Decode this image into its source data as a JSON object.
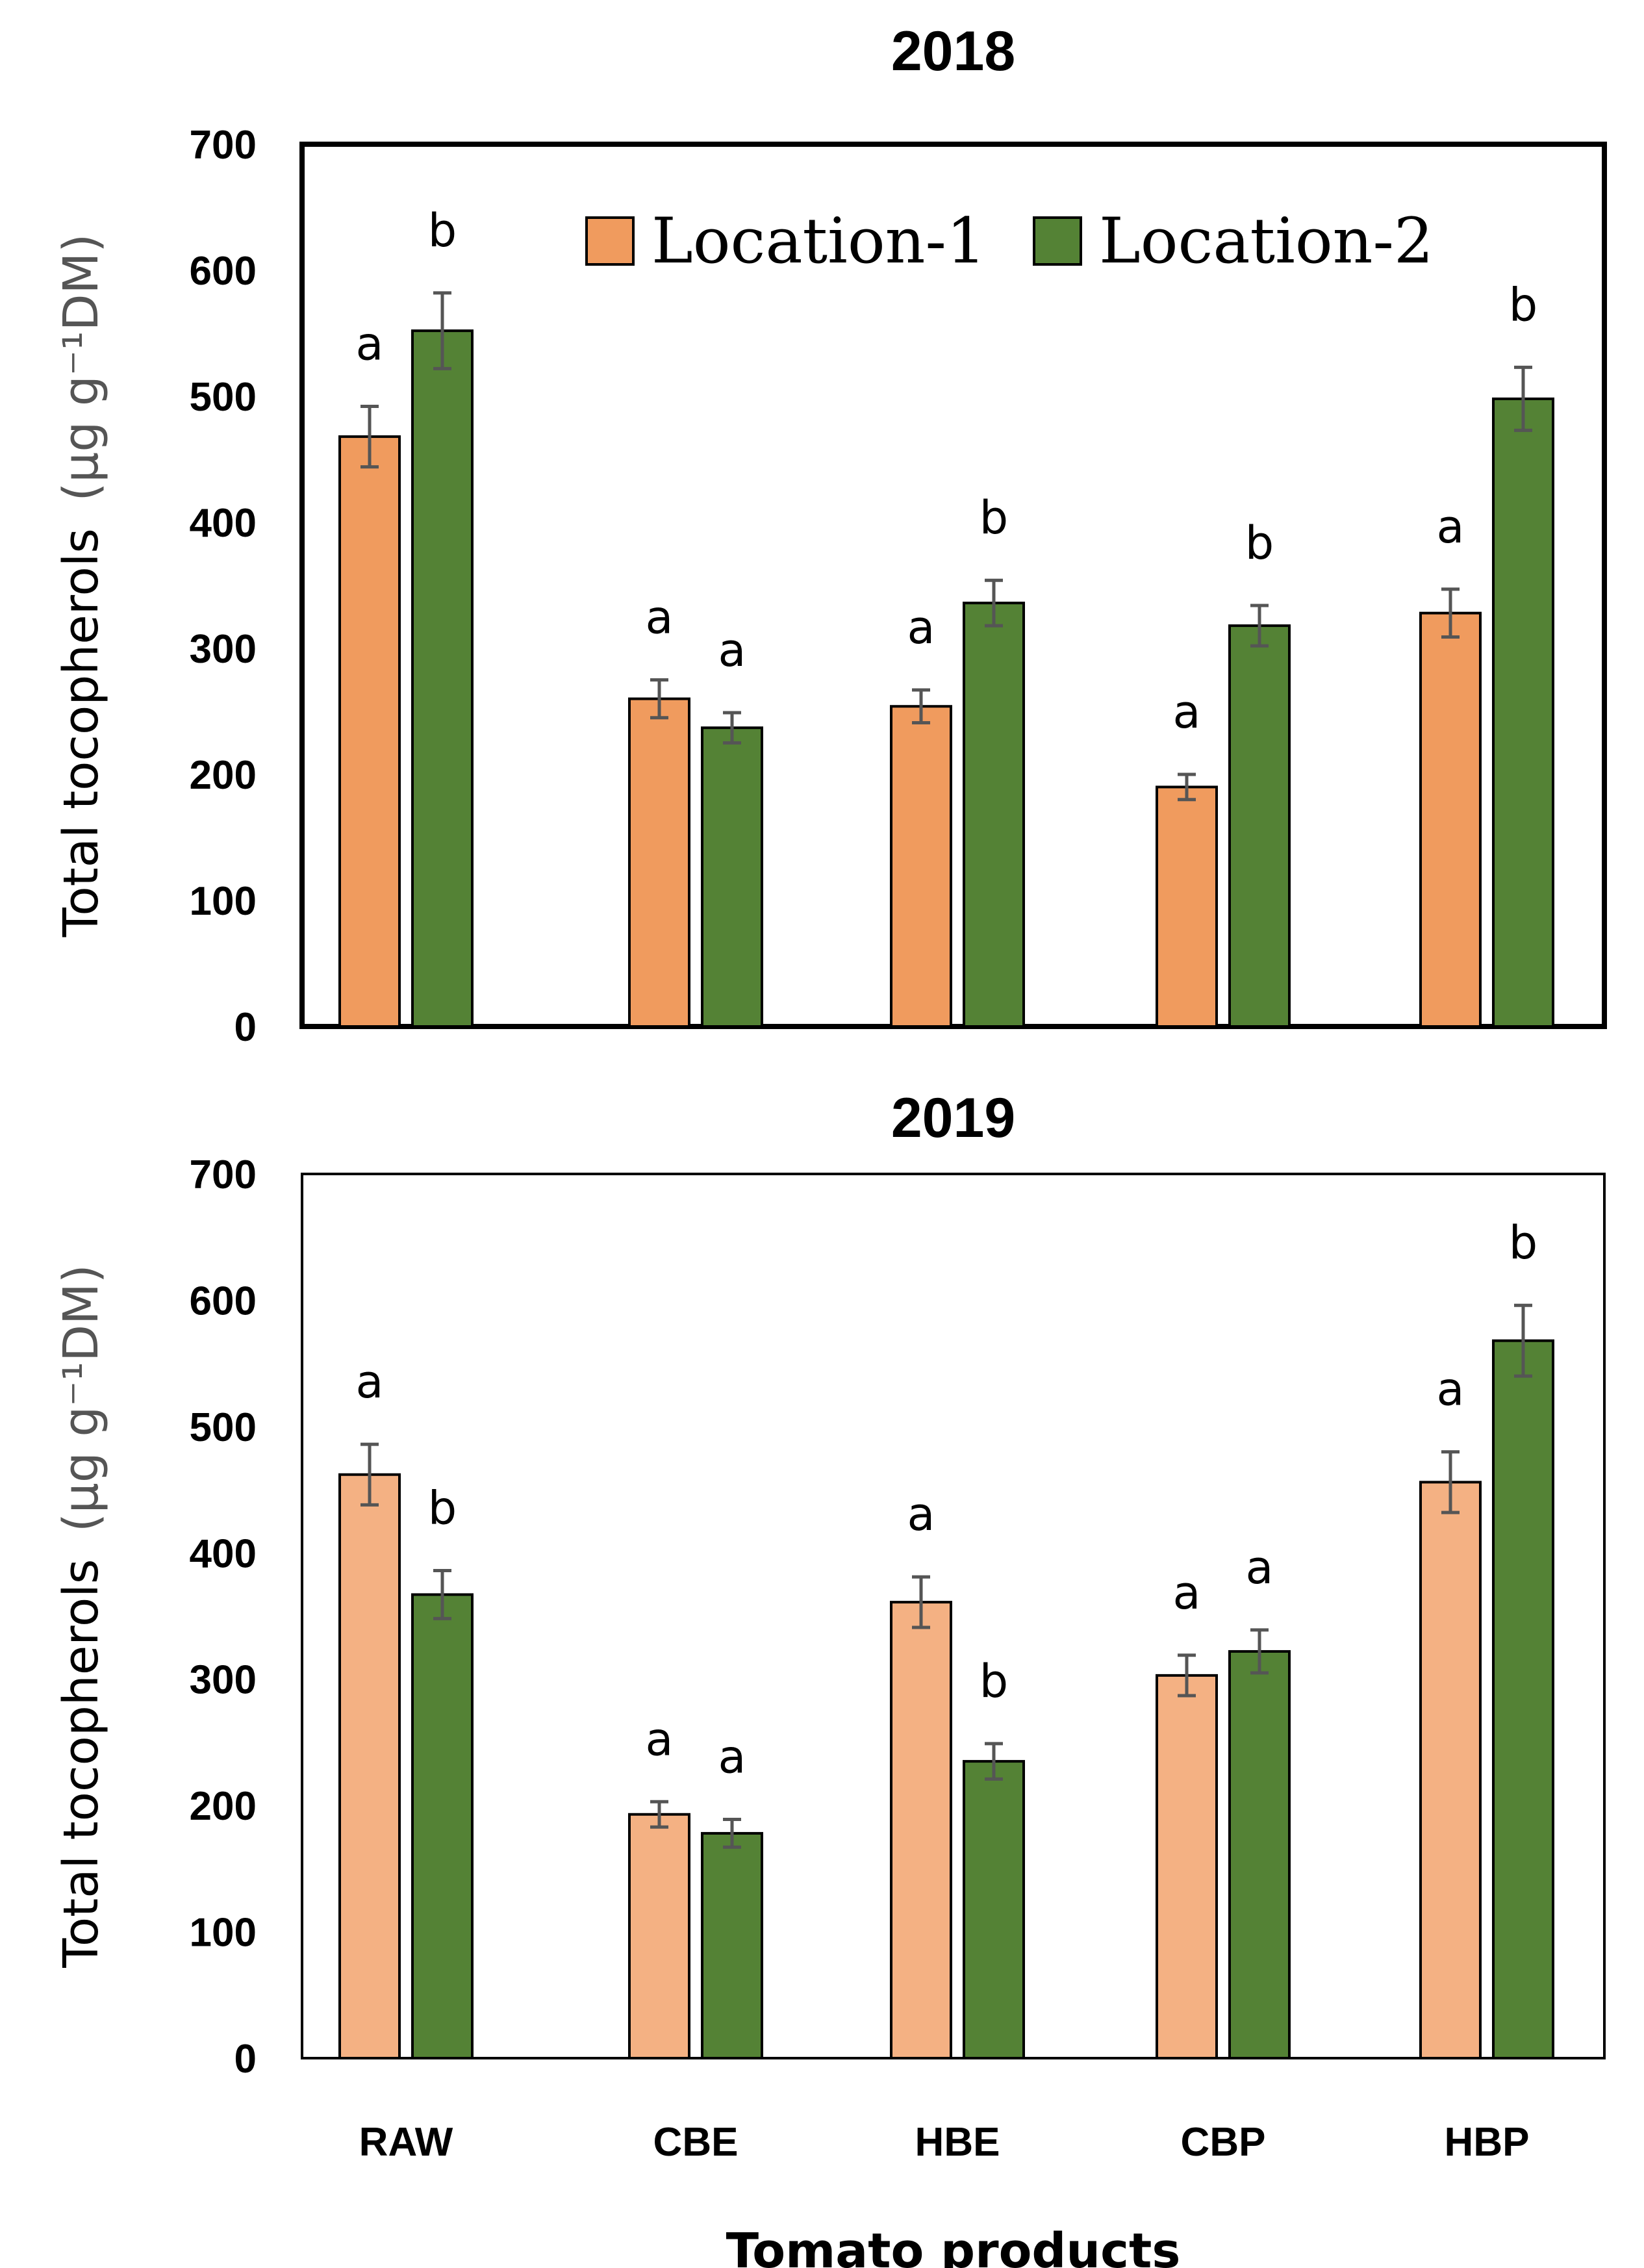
{
  "chart_data": [
    {
      "type": "bar",
      "title": "2018",
      "ylabel": "Total tocopherols",
      "ylabel_unit": "(μg g⁻¹DM)",
      "xlabel": "",
      "ylim": [
        0,
        700
      ],
      "yticks": [
        0,
        100,
        200,
        300,
        400,
        500,
        600,
        700
      ],
      "categories": [
        "RAW",
        "CBE",
        "HBE",
        "CBP",
        "HBP"
      ],
      "show_category_labels": false,
      "legend": "top",
      "series": [
        {
          "name": "Location-1",
          "color": "#F09B5E",
          "values": [
            468,
            260,
            254,
            190,
            328
          ],
          "errors": [
            24,
            15,
            13,
            10,
            19
          ],
          "letters": [
            "a",
            "a",
            "a",
            "a",
            "a"
          ]
        },
        {
          "name": "Location-2",
          "color": "#548235",
          "values": [
            552,
            237,
            336,
            318,
            498
          ],
          "errors": [
            30,
            12,
            18,
            16,
            25
          ],
          "letters": [
            "b",
            "a",
            "b",
            "b",
            "b"
          ]
        }
      ]
    },
    {
      "type": "bar",
      "title": "2019",
      "ylabel": "Total tocopherols",
      "ylabel_unit": "(μg g⁻¹DM)",
      "xlabel": "Tomato products",
      "ylim": [
        0,
        700
      ],
      "yticks": [
        0,
        100,
        200,
        300,
        400,
        500,
        600,
        700
      ],
      "categories": [
        "RAW",
        "CBE",
        "HBE",
        "CBP",
        "HBP"
      ],
      "show_category_labels": true,
      "legend": "none",
      "series": [
        {
          "name": "Location-1",
          "color": "#F4B183",
          "values": [
            462,
            193,
            361,
            303,
            456
          ],
          "errors": [
            24,
            10,
            20,
            16,
            24
          ],
          "letters": [
            "a",
            "a",
            "a",
            "a",
            "a"
          ]
        },
        {
          "name": "Location-2",
          "color": "#548235",
          "values": [
            367,
            178,
            235,
            322,
            568
          ],
          "errors": [
            19,
            11,
            14,
            17,
            28
          ],
          "letters": [
            "b",
            "a",
            "b",
            "a",
            "b"
          ]
        }
      ]
    }
  ]
}
